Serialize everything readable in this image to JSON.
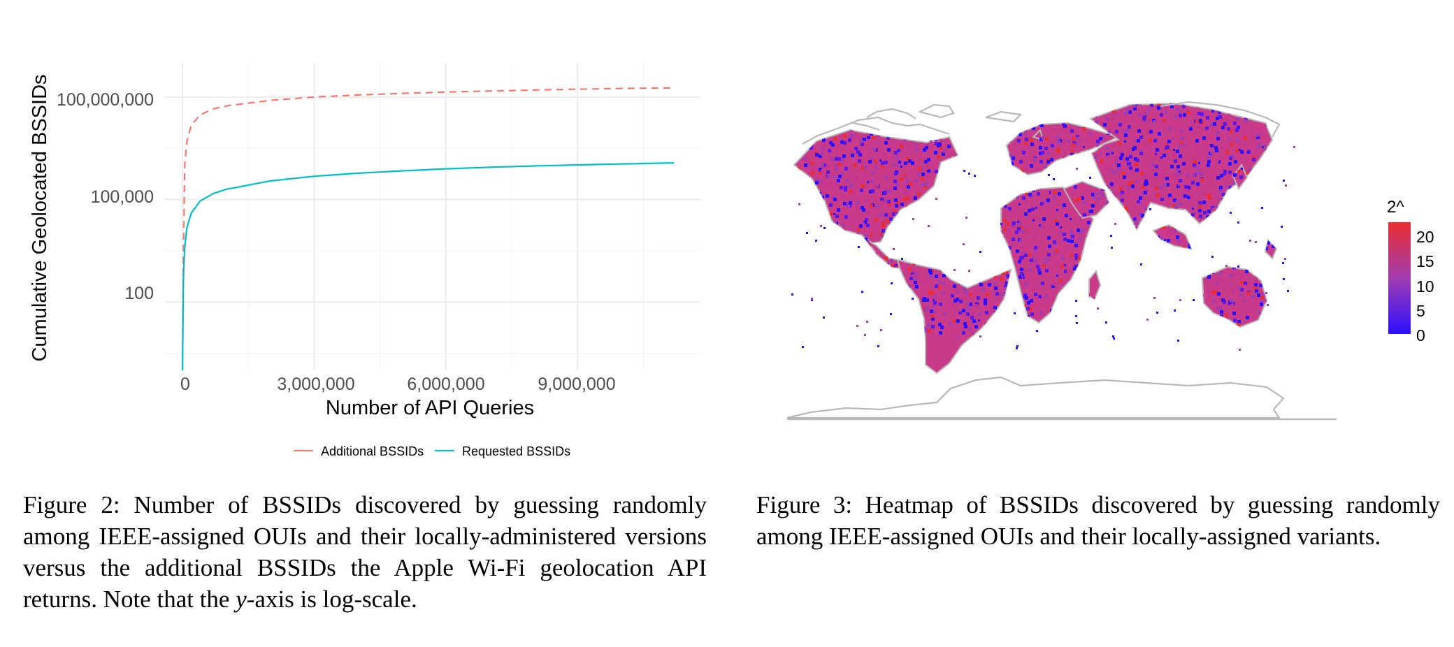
{
  "figure2": {
    "caption_prefix": "Figure 2:",
    "caption_part1": "Number of BSSIDs discovered by guessing randomly among IEEE-assigned OUIs and their locally-administered versions versus the additional BSSIDs the Apple Wi-Fi geolocation API returns. Note that the",
    "caption_var": "y",
    "caption_part2": "-axis is log-scale."
  },
  "figure3": {
    "caption_prefix": "Figure 3:",
    "caption_text": "Heatmap of BSSIDs discovered by guessing randomly among IEEE-assigned OUIs and their locally-assigned variants.",
    "legend_title": "2^",
    "legend_ticks": [
      "20",
      "15",
      "10",
      "5",
      "0"
    ],
    "colors": {
      "low": "#2a10ff",
      "mid": "#a23cb0",
      "high": "#ea2e30",
      "land_outline": "#b8b8b8"
    }
  },
  "chart_data": [
    {
      "type": "line",
      "title": "",
      "xlabel": "Number of API Queries",
      "ylabel": "Cumulative Geolocated BSSIDs",
      "x_ticks": [
        "0",
        "3,000,000",
        "6,000,000",
        "9,000,000"
      ],
      "x_tick_values": [
        0,
        3000000,
        6000000,
        9000000
      ],
      "y_ticks": [
        "100",
        "100,000",
        "100,000,000"
      ],
      "y_tick_values": [
        100,
        100000,
        100000000
      ],
      "y_scale": "log",
      "xlim": [
        -400000,
        11800000
      ],
      "ylim": [
        1,
        1000000000
      ],
      "grid": true,
      "legend_position": "bottom",
      "series": [
        {
          "name": "Additional BSSIDs",
          "color": "#f8766d",
          "dash": "dashed",
          "x": [
            0,
            20000,
            50000,
            100000,
            200000,
            400000,
            700000,
            1000000,
            2000000,
            3000000,
            4000000,
            5000000,
            6000000,
            7000000,
            8000000,
            9000000,
            10000000,
            11200000
          ],
          "y": [
            1,
            3000,
            1000000,
            5000000,
            15000000,
            30000000,
            45000000,
            55000000,
            80000000,
            100000000,
            115000000,
            128000000,
            140000000,
            150000000,
            160000000,
            170000000,
            178000000,
            185000000
          ]
        },
        {
          "name": "Requested BSSIDs",
          "color": "#00bfc4",
          "dash": "solid",
          "x": [
            0,
            20000,
            50000,
            100000,
            200000,
            400000,
            700000,
            1000000,
            2000000,
            3000000,
            4000000,
            5000000,
            6000000,
            7000000,
            8000000,
            9000000,
            10000000,
            11200000
          ],
          "y": [
            1,
            500,
            4000,
            15000,
            40000,
            90000,
            150000,
            200000,
            350000,
            480000,
            590000,
            690000,
            790000,
            880000,
            960000,
            1030000,
            1100000,
            1180000
          ]
        }
      ]
    },
    {
      "type": "heatmap",
      "title": "",
      "legend_title": "2^",
      "scale_range": [
        0,
        22
      ],
      "legend_ticks": [
        20,
        15,
        10,
        5,
        0
      ]
    }
  ]
}
